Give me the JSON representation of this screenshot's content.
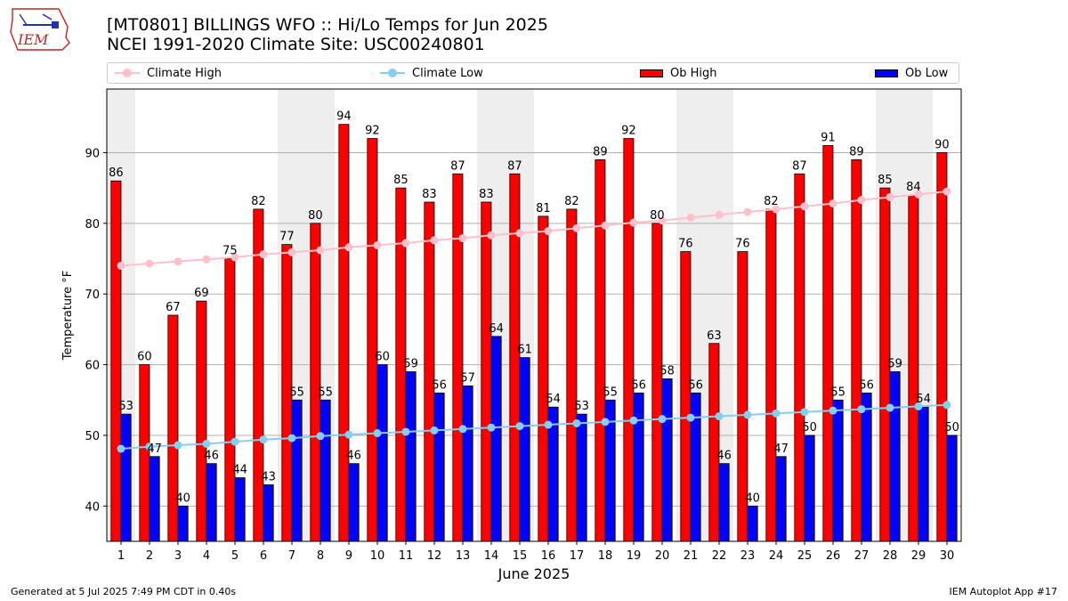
{
  "header": {
    "title_line1": "[MT0801] BILLINGS WFO :: Hi/Lo Temps for Jun 2025",
    "title_line2": "NCEI 1991-2020 Climate Site: USC00240801",
    "logo_text": "IEM"
  },
  "footer": {
    "generated": "Generated at 5 Jul 2025 7:49 PM CDT in 0.40s",
    "app": "IEM Autoplot App #17"
  },
  "colors": {
    "ob_high": "#ff0000",
    "ob_low": "#0000ff",
    "climate_high": "#ffc0cb",
    "climate_low": "#87ceeb",
    "weekend_shade": "#eeeeee",
    "grid": "#b0b0b0"
  },
  "chart_data": {
    "type": "bar",
    "xlabel": "June 2025",
    "ylabel": "Temperature °F",
    "ylim": [
      35,
      99
    ],
    "yticks": [
      40,
      50,
      60,
      70,
      80,
      90
    ],
    "grid": "horizontal",
    "legend_position": "top",
    "categories": [
      "1",
      "2",
      "3",
      "4",
      "5",
      "6",
      "7",
      "8",
      "9",
      "10",
      "11",
      "12",
      "13",
      "14",
      "15",
      "16",
      "17",
      "18",
      "19",
      "20",
      "21",
      "22",
      "23",
      "24",
      "25",
      "26",
      "27",
      "28",
      "29",
      "30"
    ],
    "shaded_days": [
      "1",
      "7",
      "8",
      "14",
      "15",
      "21",
      "22",
      "28",
      "29"
    ],
    "series": [
      {
        "name": "Ob High",
        "type": "bar",
        "color": "#ff0000",
        "values": [
          86,
          60,
          67,
          69,
          75,
          82,
          77,
          80,
          94,
          92,
          85,
          83,
          87,
          83,
          87,
          81,
          82,
          89,
          92,
          80,
          76,
          63,
          76,
          82,
          87,
          91,
          89,
          85,
          84,
          90
        ]
      },
      {
        "name": "Ob Low",
        "type": "bar",
        "color": "#0000ff",
        "values": [
          53,
          47,
          40,
          46,
          44,
          43,
          55,
          55,
          46,
          60,
          59,
          56,
          57,
          64,
          61,
          54,
          53,
          55,
          56,
          58,
          56,
          46,
          40,
          47,
          50,
          55,
          56,
          59,
          54,
          50
        ]
      },
      {
        "name": "Climate High",
        "type": "line",
        "color": "#ffc0cb",
        "values": [
          74.0,
          74.3,
          74.6,
          74.9,
          75.2,
          75.6,
          75.9,
          76.2,
          76.6,
          76.9,
          77.2,
          77.6,
          77.9,
          78.3,
          78.6,
          78.9,
          79.3,
          79.7,
          80.1,
          80.4,
          80.8,
          81.2,
          81.6,
          82.0,
          82.4,
          82.8,
          83.3,
          83.7,
          84.1,
          84.5
        ]
      },
      {
        "name": "Climate Low",
        "type": "line",
        "color": "#87ceeb",
        "values": [
          48.1,
          48.4,
          48.6,
          48.8,
          49.1,
          49.4,
          49.6,
          49.9,
          50.1,
          50.3,
          50.5,
          50.7,
          50.9,
          51.1,
          51.3,
          51.5,
          51.7,
          51.9,
          52.1,
          52.3,
          52.5,
          52.7,
          52.9,
          53.1,
          53.3,
          53.5,
          53.7,
          53.9,
          54.1,
          54.3
        ]
      }
    ]
  }
}
